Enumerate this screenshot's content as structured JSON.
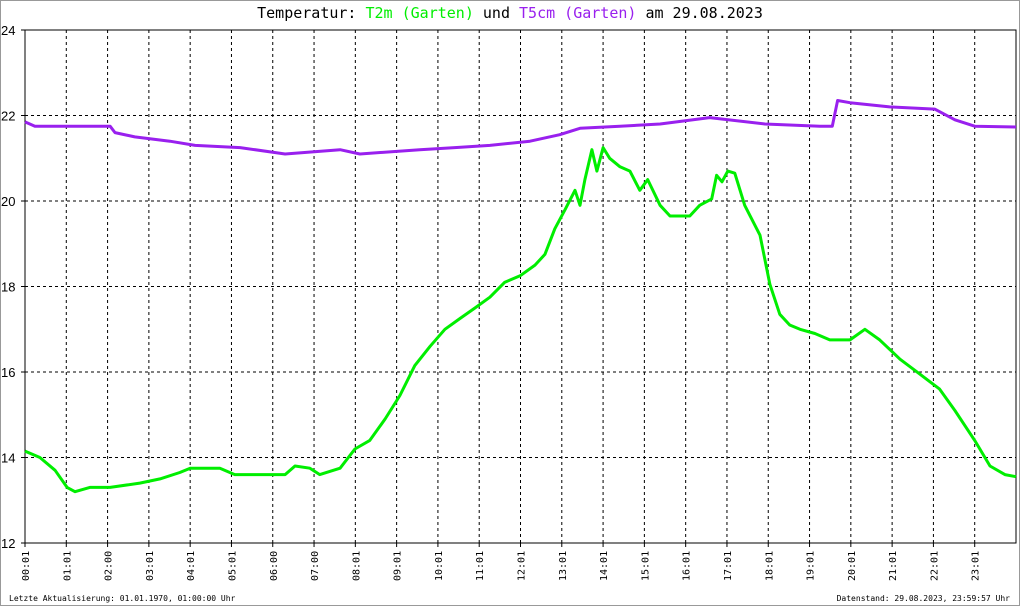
{
  "title": {
    "prefix": "Temperatur:",
    "series1": "T2m (Garten)",
    "mid": "und",
    "series2": "T5cm (Garten)",
    "suffix": "am 29.08.2023"
  },
  "footer": {
    "left": "Letzte Aktualisierung: 01.01.1970, 01:00:00 Uhr",
    "right": "Datenstand: 29.08.2023, 23:59:57 Uhr"
  },
  "chart_data": {
    "type": "line",
    "title": "Temperatur: T2m (Garten) und T5cm (Garten) am 29.08.2023",
    "xlabel": "",
    "ylabel": "",
    "xlim": [
      0,
      24
    ],
    "ylim": [
      12,
      24
    ],
    "grid": true,
    "y_ticks": [
      "12",
      "14",
      "16",
      "18",
      "20",
      "22",
      "24"
    ],
    "x_ticks": [
      {
        "h": 0,
        "label": "00:01"
      },
      {
        "h": 1,
        "label": "01:01"
      },
      {
        "h": 2,
        "label": "02:00"
      },
      {
        "h": 3,
        "label": "03:01"
      },
      {
        "h": 4,
        "label": "04:01"
      },
      {
        "h": 5,
        "label": "05:01"
      },
      {
        "h": 6,
        "label": "06:00"
      },
      {
        "h": 7,
        "label": "07:00"
      },
      {
        "h": 8,
        "label": "08:01"
      },
      {
        "h": 9,
        "label": "09:01"
      },
      {
        "h": 10,
        "label": "10:01"
      },
      {
        "h": 11,
        "label": "11:01"
      },
      {
        "h": 12,
        "label": "12:01"
      },
      {
        "h": 13,
        "label": "13:01"
      },
      {
        "h": 14,
        "label": "14:01"
      },
      {
        "h": 15,
        "label": "15:01"
      },
      {
        "h": 16,
        "label": "16:01"
      },
      {
        "h": 17,
        "label": "17:01"
      },
      {
        "h": 18,
        "label": "18:01"
      },
      {
        "h": 19,
        "label": "19:01"
      },
      {
        "h": 20,
        "label": "20:01"
      },
      {
        "h": 21,
        "label": "21:01"
      },
      {
        "h": 22,
        "label": "22:01"
      },
      {
        "h": 23,
        "label": "23:01"
      }
    ],
    "series": [
      {
        "name": "T2m (Garten)",
        "color": "#00ee00",
        "x": [
          0,
          0.36,
          0.73,
          1.02,
          1.21,
          1.57,
          2.06,
          2.78,
          3.27,
          3.75,
          4.0,
          4.72,
          5.08,
          6.3,
          6.54,
          6.9,
          7.14,
          7.63,
          7.99,
          8.35,
          8.72,
          9.08,
          9.44,
          9.81,
          10.17,
          10.53,
          10.9,
          11.26,
          11.62,
          11.99,
          12.35,
          12.59,
          12.83,
          13.08,
          13.32,
          13.44,
          13.56,
          13.73,
          13.85,
          14.0,
          14.16,
          14.41,
          14.65,
          14.89,
          15.08,
          15.38,
          15.62,
          16.1,
          16.34,
          16.63,
          16.75,
          16.88,
          17.02,
          17.19,
          17.43,
          17.8,
          18.04,
          18.28,
          18.52,
          18.77,
          19.13,
          19.49,
          19.98,
          20.34,
          20.7,
          21.19,
          21.67,
          22.15,
          22.52,
          23.0,
          23.37,
          23.73,
          24.0
        ],
        "y": [
          14.15,
          14.0,
          13.7,
          13.3,
          13.2,
          13.3,
          13.3,
          13.4,
          13.5,
          13.65,
          13.75,
          13.75,
          13.6,
          13.6,
          13.8,
          13.75,
          13.6,
          13.75,
          14.2,
          14.4,
          14.9,
          15.45,
          16.15,
          16.6,
          17.0,
          17.25,
          17.5,
          17.75,
          18.1,
          18.25,
          18.5,
          18.75,
          19.35,
          19.8,
          20.25,
          19.9,
          20.5,
          21.2,
          20.7,
          21.25,
          21.0,
          20.8,
          20.7,
          20.25,
          20.5,
          19.9,
          19.65,
          19.65,
          19.9,
          20.05,
          20.6,
          20.45,
          20.7,
          20.65,
          19.9,
          19.2,
          18.05,
          17.35,
          17.1,
          17.0,
          16.9,
          16.75,
          16.75,
          17.0,
          16.75,
          16.3,
          15.95,
          15.6,
          15.1,
          14.4,
          13.8,
          13.6,
          13.55
        ]
      },
      {
        "name": "T5cm (Garten)",
        "color": "#9920ee",
        "x": [
          0,
          0.24,
          2.06,
          2.18,
          2.66,
          3.51,
          4.12,
          5.21,
          6.3,
          7.63,
          8.11,
          9.56,
          10.41,
          11.26,
          12.23,
          12.95,
          13.44,
          14.41,
          15.38,
          16.58,
          17.92,
          19.25,
          19.55,
          19.68,
          19.98,
          20.94,
          22.03,
          22.52,
          23.0,
          24.0
        ],
        "y": [
          21.85,
          21.75,
          21.75,
          21.6,
          21.5,
          21.4,
          21.3,
          21.25,
          21.1,
          21.2,
          21.1,
          21.2,
          21.25,
          21.3,
          21.4,
          21.55,
          21.7,
          21.75,
          21.8,
          21.95,
          21.8,
          21.75,
          21.75,
          22.35,
          22.3,
          22.2,
          22.15,
          21.9,
          21.75,
          21.73
        ]
      }
    ]
  }
}
